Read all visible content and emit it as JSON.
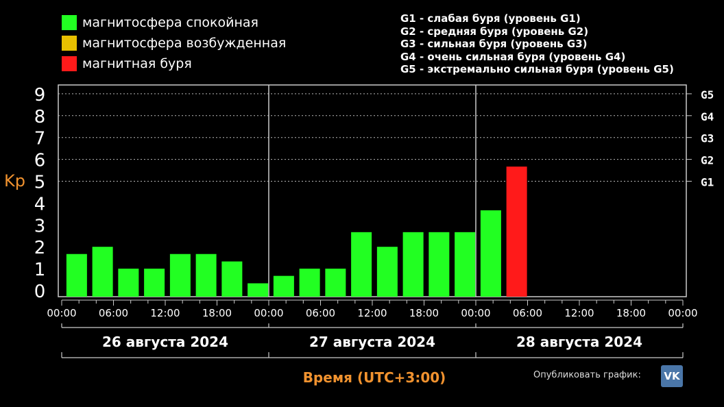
{
  "legend": [
    {
      "label": "магнитосфера спокойная",
      "color": "#22ff22"
    },
    {
      "label": "магнитосфера возбужденная",
      "color": "#e8c000"
    },
    {
      "label": "магнитная буря",
      "color": "#ff1a1a"
    }
  ],
  "storm_levels": [
    "G1 - слабая буря (уровень G1)",
    "G2 - средняя буря (уровень G2)",
    "G3 - сильная буря (уровень G3)",
    "G4 - очень сильная буря (уровень G4)",
    "G5 - экстремально сильная буря (уровень G5)"
  ],
  "publish_label": "Опубликовать график:",
  "vk_icon_text": "VK",
  "chart_data": {
    "type": "bar",
    "ylabel": "Kp",
    "xlabel": "Время (UTC+3:00)",
    "ylim": [
      0,
      9
    ],
    "y_ticks": [
      "0",
      "1",
      "2",
      "3",
      "4",
      "5",
      "6",
      "7",
      "8",
      "9"
    ],
    "right_ticks": [
      {
        "value": 5,
        "label": "G1"
      },
      {
        "value": 6,
        "label": "G2"
      },
      {
        "value": 7,
        "label": "G3"
      },
      {
        "value": 8,
        "label": "G4"
      },
      {
        "value": 9,
        "label": "G5"
      }
    ],
    "x_tick_labels": [
      "00:00",
      "06:00",
      "12:00",
      "18:00",
      "00:00",
      "06:00",
      "12:00",
      "18:00",
      "00:00",
      "06:00",
      "12:00",
      "18:00",
      "00:00"
    ],
    "days": [
      "26 августа 2024",
      "27 августа 2024",
      "28 августа 2024"
    ],
    "bars": [
      {
        "value": 1.67,
        "color": "#22ff22"
      },
      {
        "value": 2.0,
        "color": "#22ff22"
      },
      {
        "value": 1.0,
        "color": "#22ff22"
      },
      {
        "value": 1.0,
        "color": "#22ff22"
      },
      {
        "value": 1.67,
        "color": "#22ff22"
      },
      {
        "value": 1.67,
        "color": "#22ff22"
      },
      {
        "value": 1.33,
        "color": "#22ff22"
      },
      {
        "value": 0.33,
        "color": "#22ff22"
      },
      {
        "value": 0.67,
        "color": "#22ff22"
      },
      {
        "value": 1.0,
        "color": "#22ff22"
      },
      {
        "value": 1.0,
        "color": "#22ff22"
      },
      {
        "value": 2.67,
        "color": "#22ff22"
      },
      {
        "value": 2.0,
        "color": "#22ff22"
      },
      {
        "value": 2.67,
        "color": "#22ff22"
      },
      {
        "value": 2.67,
        "color": "#22ff22"
      },
      {
        "value": 2.67,
        "color": "#22ff22"
      },
      {
        "value": 3.67,
        "color": "#22ff22"
      },
      {
        "value": 5.67,
        "color": "#ff1a1a"
      }
    ]
  }
}
